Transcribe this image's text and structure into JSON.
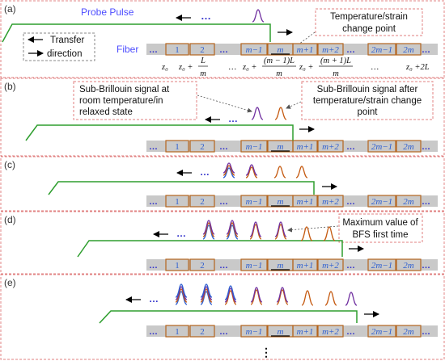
{
  "panels": [
    {
      "id": "a",
      "label": "(a)"
    },
    {
      "id": "b",
      "label": "(b)"
    },
    {
      "id": "c",
      "label": "(c)"
    },
    {
      "id": "d",
      "label": "(d)"
    },
    {
      "id": "e",
      "label": "(e)"
    }
  ],
  "text": {
    "probe_pulse": "Probe Pulse",
    "fiber": "Fiber",
    "transfer_line1": "Transfer",
    "transfer_line2": "direction",
    "temp_change_line1": "Temperature/strain",
    "temp_change_line2": "change point",
    "sub_room_line1": "Sub-Brillouin signal at",
    "sub_room_line2": "room temperature/in",
    "sub_room_line3": "relaxed state",
    "sub_after_line1": "Sub-Brillouin signal after",
    "sub_after_line2": "temperature/strain change",
    "sub_after_line3": "point",
    "bfs_line1": "Maximum value of",
    "bfs_line2": "BFS first time",
    "ellipsis": "…",
    "vdots": "⋮"
  },
  "fiber_segments": [
    "1",
    "2",
    "m−1",
    "m",
    "m+1",
    "m+2",
    "2m−1",
    "2m"
  ],
  "positions": {
    "p0": "z₀",
    "p1_a": "z₀ +",
    "p1_num": "L",
    "p1_den": "m",
    "p2_a": "z₀ +",
    "p2_num": "(m − 1)L",
    "p2_den": "m",
    "p3_a": "z₀ +",
    "p3_num": "(m + 1)L",
    "p3_den": "m",
    "p4": "z₀ +2L"
  },
  "colors": {
    "purple": "#7030a0",
    "orange": "#c55a11",
    "blue": "#2e5fd0",
    "green": "#2e9e2e",
    "brown": "#b5651d",
    "fiber_gray": "#c9c9c9",
    "dots_blue": "#3333cc",
    "box_red": "#e06666",
    "label_blue": "#4d4dff"
  }
}
